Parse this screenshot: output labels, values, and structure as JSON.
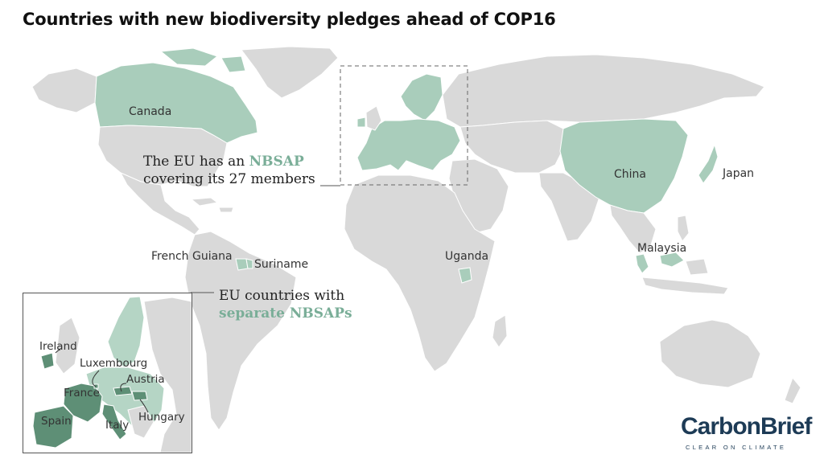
{
  "title": "Countries with new biodiversity pledges ahead of COP16",
  "colors": {
    "land": "#d9d9d9",
    "pledge": "#a9cdbb",
    "eu_separate": "#5e8f76",
    "eu_member": "#b5d5c5",
    "border": "#ffffff"
  },
  "labels": {
    "canada": "Canada",
    "china": "China",
    "japan": "Japan",
    "malaysia": "Malaysia",
    "uganda": "Uganda",
    "suriname": "Suriname",
    "french_guiana": "French Guiana"
  },
  "annotations": {
    "eu_line1_pre": "The EU has an ",
    "eu_line1_hl": "NBSAP",
    "eu_line2": "covering its 27 members",
    "sep_line1": "EU countries with",
    "sep_line2": "separate NBSAPs"
  },
  "inset": {
    "ireland": "Ireland",
    "luxembourg": "Luxembourg",
    "austria": "Austria",
    "france": "France",
    "spain": "Spain",
    "italy": "Italy",
    "hungary": "Hungary"
  },
  "logo": {
    "name": "CarbonBrief",
    "tagline": "CLEAR ON CLIMATE"
  }
}
